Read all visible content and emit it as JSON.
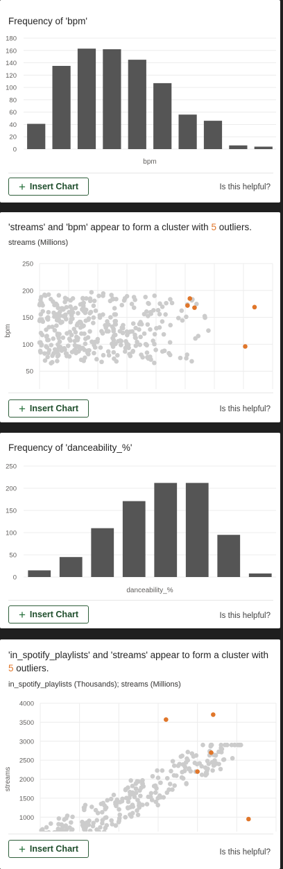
{
  "ui": {
    "insert_chart_label": "Insert Chart",
    "helpful_label": "Is this helpful?"
  },
  "cards": [
    {
      "title": "Frequency of 'bpm'",
      "chart_data": {
        "type": "bar",
        "title": "Frequency of 'bpm'",
        "xlabel": "bpm",
        "ylabel": "",
        "ylim": [
          0,
          180
        ],
        "yticks": [
          "0",
          "20",
          "40",
          "60",
          "80",
          "100",
          "120",
          "140",
          "160",
          "180"
        ],
        "values": [
          41,
          135,
          163,
          162,
          145,
          107,
          56,
          46,
          6,
          4
        ],
        "color": "#555555",
        "grid": true
      }
    },
    {
      "title_parts": {
        "before": "'streams' and 'bpm' appear to form a cluster with ",
        "count": "5",
        "after": " outliers."
      },
      "subtitle": "streams (Millions)",
      "chart_data": {
        "type": "scatter",
        "xlabel": "streams",
        "ylabel": "bpm",
        "xlim": [
          0,
          4000
        ],
        "ylim": [
          0,
          250
        ],
        "xticks": [
          "0",
          "500",
          "1000",
          "1500",
          "2000",
          "2500",
          "3000",
          "3500",
          "4000"
        ],
        "yticks": [
          "0",
          "50",
          "100",
          "150",
          "200",
          "250"
        ],
        "point_color": "#cccccc",
        "outlier_color": "#e0762a",
        "outliers": [
          {
            "x": 2580,
            "y": 185
          },
          {
            "x": 2540,
            "y": 172
          },
          {
            "x": 2660,
            "y": 168
          },
          {
            "x": 3690,
            "y": 169
          },
          {
            "x": 3530,
            "y": 96
          }
        ],
        "point_count": 360,
        "grid": true
      }
    },
    {
      "title": "Frequency of 'danceability_%'",
      "chart_data": {
        "type": "bar",
        "title": "Frequency of 'danceability_%'",
        "xlabel": "danceability_%",
        "ylabel": "",
        "ylim": [
          0,
          250
        ],
        "yticks": [
          "0",
          "50",
          "100",
          "150",
          "200",
          "250"
        ],
        "values": [
          15,
          45,
          110,
          171,
          212,
          212,
          95,
          8
        ],
        "color": "#555555",
        "grid": true
      }
    },
    {
      "title_parts": {
        "before": "'in_spotify_playlists' and 'streams' appear to form a cluster with ",
        "count": "5",
        "after": " outliers."
      },
      "subtitle": "in_spotify_playlists (Thousands); streams (Millions)",
      "chart_data": {
        "type": "scatter",
        "xlabel": "in_spotify_playlists",
        "ylabel": "streams",
        "xlim": [
          0,
          60
        ],
        "ylim": [
          0,
          4000
        ],
        "xticks": [
          "0",
          "10",
          "20",
          "30",
          "40",
          "50",
          "60"
        ],
        "yticks": [
          "0",
          "500",
          "1000",
          "1500",
          "2000",
          "2500",
          "3000",
          "3500",
          "4000"
        ],
        "point_color": "#cccccc",
        "outlier_color": "#e0762a",
        "outliers": [
          {
            "x": 32,
            "y": 3570
          },
          {
            "x": 44,
            "y": 3700
          },
          {
            "x": 43.5,
            "y": 2700
          },
          {
            "x": 40,
            "y": 2200
          },
          {
            "x": 53,
            "y": 950
          }
        ],
        "point_count": 340,
        "grid": true
      }
    }
  ]
}
